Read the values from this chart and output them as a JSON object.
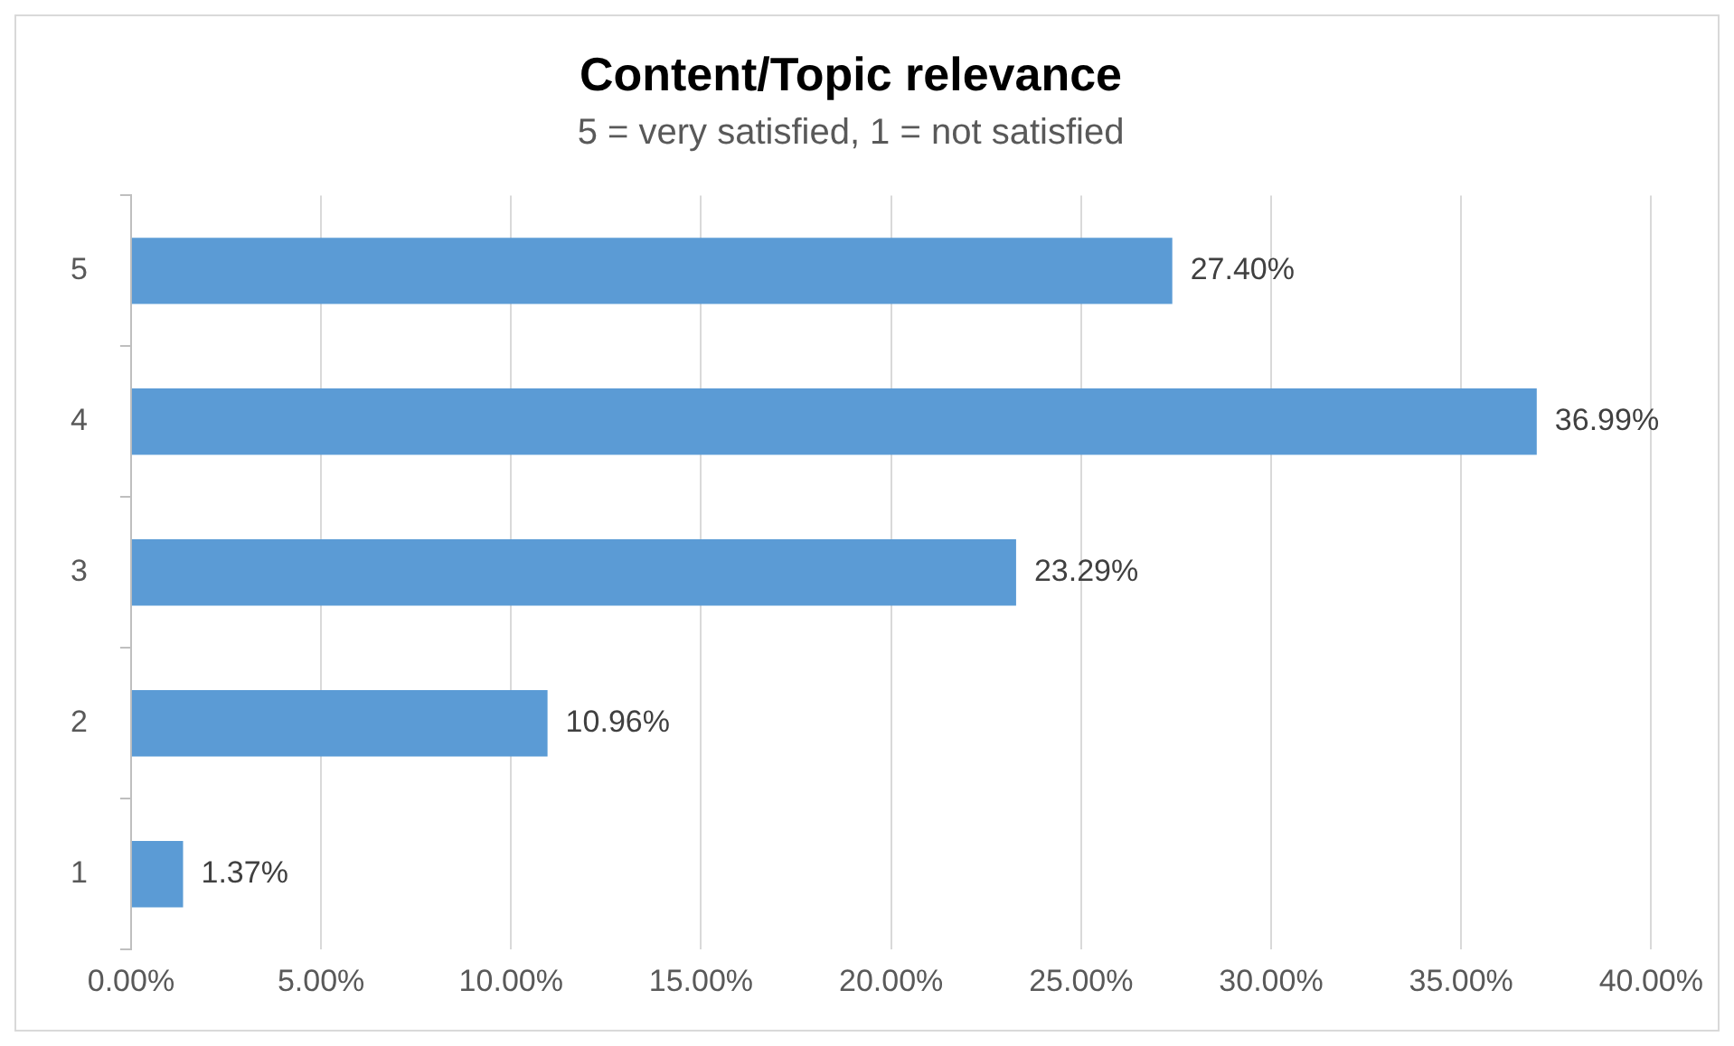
{
  "chart_data": {
    "type": "bar",
    "title": "Content/Topic relevance",
    "subtitle": "5 = very satisfied, 1 = not satisfied",
    "orientation": "horizontal",
    "categories": [
      "5",
      "4",
      "3",
      "2",
      "1"
    ],
    "values": [
      27.4,
      36.99,
      23.29,
      10.96,
      1.37
    ],
    "value_labels": [
      "27.40%",
      "36.99%",
      "23.29%",
      "10.96%",
      "1.37%"
    ],
    "color": "#5b9bd5",
    "xlim": [
      0,
      40
    ],
    "xticks": [
      {
        "value": 0,
        "label": "0.00%"
      },
      {
        "value": 5,
        "label": "5.00%"
      },
      {
        "value": 10,
        "label": "10.00%"
      },
      {
        "value": 15,
        "label": "15.00%"
      },
      {
        "value": 20,
        "label": "20.00%"
      },
      {
        "value": 25,
        "label": "25.00%"
      },
      {
        "value": 30,
        "label": "30.00%"
      },
      {
        "value": 35,
        "label": "35.00%"
      },
      {
        "value": 40,
        "label": "40.00%"
      }
    ],
    "grid": "x"
  }
}
